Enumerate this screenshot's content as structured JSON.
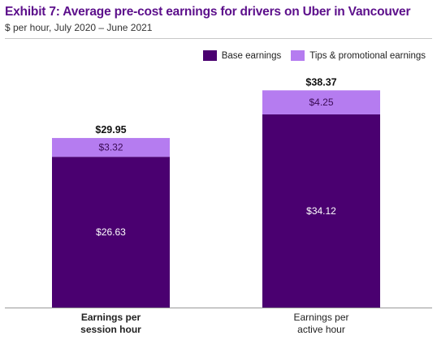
{
  "header": {
    "title": "Exhibit 7: Average pre-cost earnings for drivers on Uber in Vancouver",
    "subtitle": "$ per hour, July 2020 – June 2021"
  },
  "colors": {
    "base": "#4a0070",
    "tips": "#b57cf0",
    "title": "#5c0f8b"
  },
  "chart_data": {
    "type": "bar",
    "stacked": true,
    "categories": [
      "Earnings per session hour",
      "Earnings per active hour"
    ],
    "category_lines": [
      [
        "Earnings per",
        "session hour"
      ],
      [
        "Earnings per",
        "active hour"
      ]
    ],
    "category_bold": [
      true,
      false
    ],
    "series": [
      {
        "name": "Base earnings",
        "values": [
          26.63,
          34.12
        ],
        "labels": [
          "$26.63",
          "$34.12"
        ],
        "color": "#4a0070"
      },
      {
        "name": "Tips & promotional earnings",
        "values": [
          3.32,
          4.25
        ],
        "labels": [
          "$3.32",
          "$4.25"
        ],
        "color": "#b57cf0"
      }
    ],
    "totals": [
      29.95,
      38.37
    ],
    "total_labels": [
      "$29.95",
      "$38.37"
    ],
    "ylim": [
      0,
      42
    ],
    "grid": false,
    "legend_position": "top-right",
    "title": "Exhibit 7: Average pre-cost earnings for drivers on Uber in Vancouver",
    "xlabel": "",
    "ylabel": ""
  }
}
